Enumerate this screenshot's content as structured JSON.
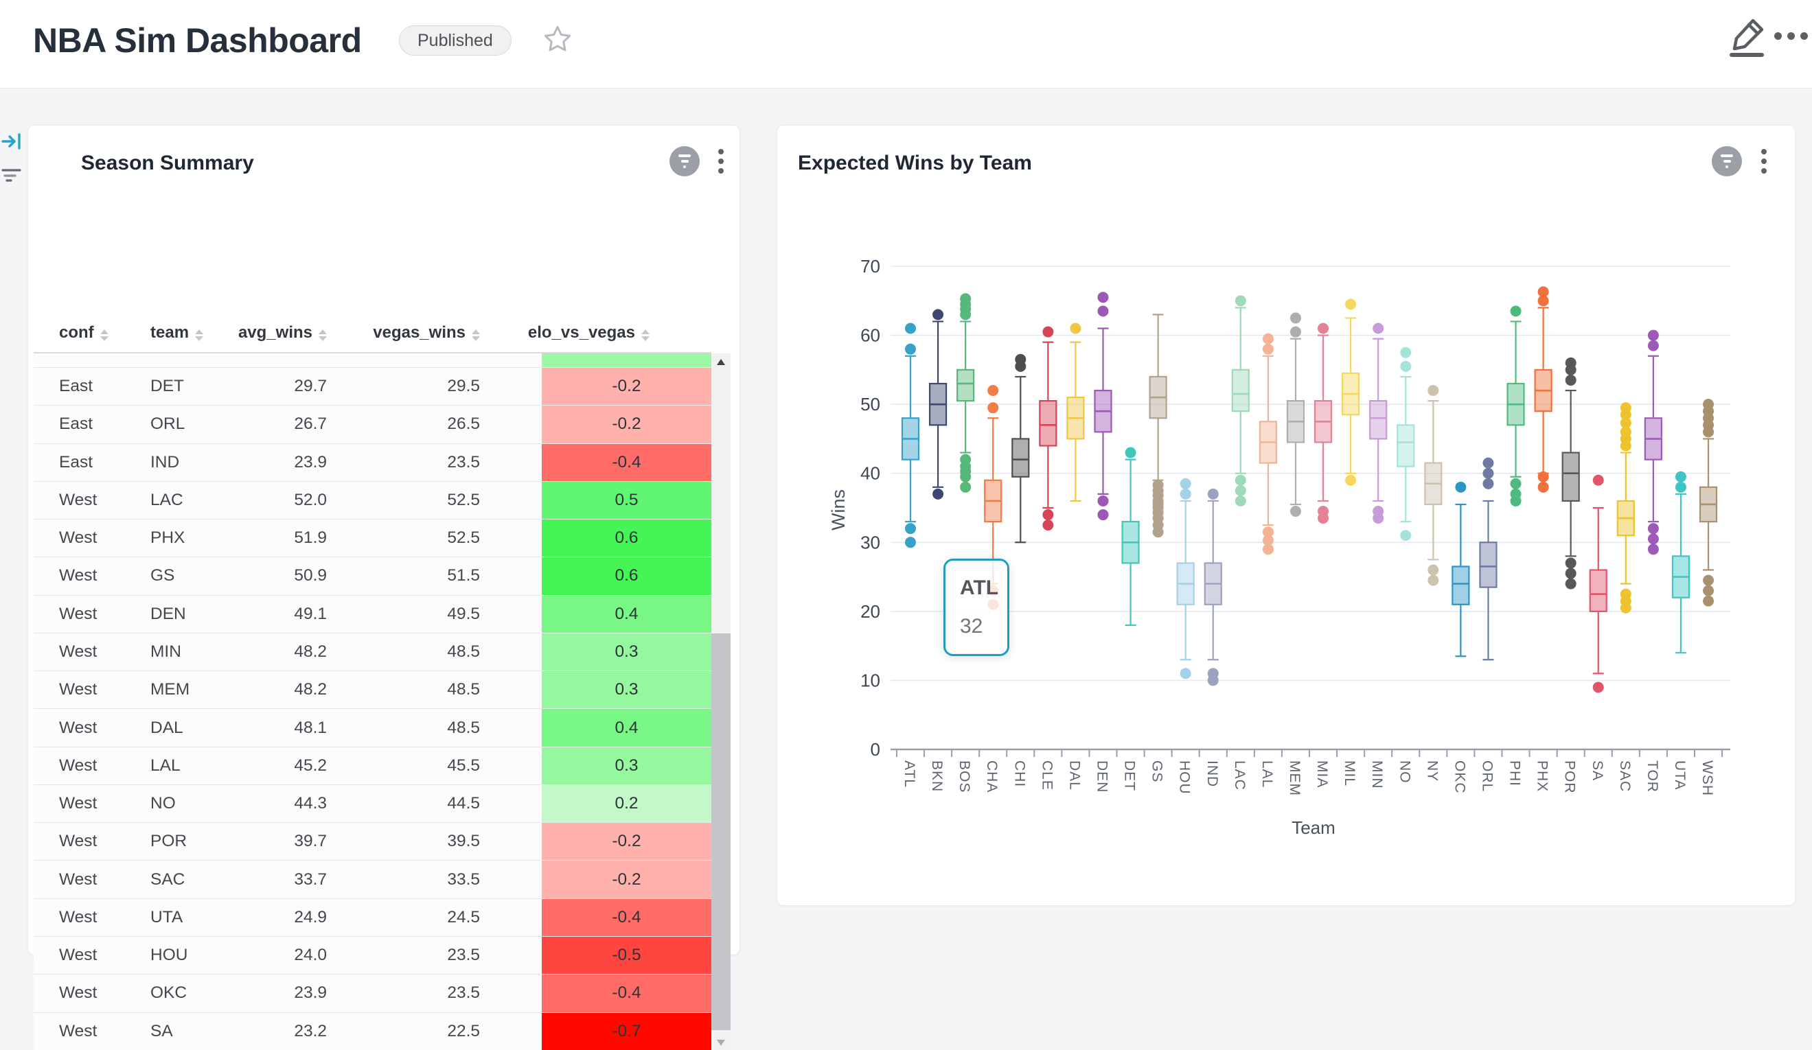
{
  "header": {
    "title": "NBA Sim Dashboard",
    "badge": "Published",
    "star_icon": "star-outline",
    "edit_icon": "pencil",
    "more_icon": "ellipsis"
  },
  "rail": {
    "expand_icon": "arrow-to-bar",
    "filter_icon": "filter-lines"
  },
  "season_summary": {
    "title": "Season Summary",
    "columns": [
      "conf",
      "team",
      "avg_wins",
      "vegas_wins",
      "elo_vs_vegas"
    ],
    "partial_row_color": "#9df8a6",
    "rows": [
      {
        "conf": "East",
        "team": "DET",
        "avg_wins": "29.7",
        "vegas_wins": "29.5",
        "elo_vs_vegas": "-0.2",
        "elo_color": "#ffb1ae"
      },
      {
        "conf": "East",
        "team": "ORL",
        "avg_wins": "26.7",
        "vegas_wins": "26.5",
        "elo_vs_vegas": "-0.2",
        "elo_color": "#ffb1ae"
      },
      {
        "conf": "East",
        "team": "IND",
        "avg_wins": "23.9",
        "vegas_wins": "23.5",
        "elo_vs_vegas": "-0.4",
        "elo_color": "#ff6b67"
      },
      {
        "conf": "West",
        "team": "LAC",
        "avg_wins": "52.0",
        "vegas_wins": "52.5",
        "elo_vs_vegas": "0.5",
        "elo_color": "#61f671"
      },
      {
        "conf": "West",
        "team": "PHX",
        "avg_wins": "51.9",
        "vegas_wins": "52.5",
        "elo_vs_vegas": "0.6",
        "elo_color": "#45f556"
      },
      {
        "conf": "West",
        "team": "GS",
        "avg_wins": "50.9",
        "vegas_wins": "51.5",
        "elo_vs_vegas": "0.6",
        "elo_color": "#45f556"
      },
      {
        "conf": "West",
        "team": "DEN",
        "avg_wins": "49.1",
        "vegas_wins": "49.5",
        "elo_vs_vegas": "0.4",
        "elo_color": "#78f786"
      },
      {
        "conf": "West",
        "team": "MIN",
        "avg_wins": "48.2",
        "vegas_wins": "48.5",
        "elo_vs_vegas": "0.3",
        "elo_color": "#95f89f"
      },
      {
        "conf": "West",
        "team": "MEM",
        "avg_wins": "48.2",
        "vegas_wins": "48.5",
        "elo_vs_vegas": "0.3",
        "elo_color": "#95f89f"
      },
      {
        "conf": "West",
        "team": "DAL",
        "avg_wins": "48.1",
        "vegas_wins": "48.5",
        "elo_vs_vegas": "0.4",
        "elo_color": "#78f786"
      },
      {
        "conf": "West",
        "team": "LAL",
        "avg_wins": "45.2",
        "vegas_wins": "45.5",
        "elo_vs_vegas": "0.3",
        "elo_color": "#95f89f"
      },
      {
        "conf": "West",
        "team": "NO",
        "avg_wins": "44.3",
        "vegas_wins": "44.5",
        "elo_vs_vegas": "0.2",
        "elo_color": "#c3f9c8"
      },
      {
        "conf": "West",
        "team": "POR",
        "avg_wins": "39.7",
        "vegas_wins": "39.5",
        "elo_vs_vegas": "-0.2",
        "elo_color": "#ffb1ae"
      },
      {
        "conf": "West",
        "team": "SAC",
        "avg_wins": "33.7",
        "vegas_wins": "33.5",
        "elo_vs_vegas": "-0.2",
        "elo_color": "#ffb1ae"
      },
      {
        "conf": "West",
        "team": "UTA",
        "avg_wins": "24.9",
        "vegas_wins": "24.5",
        "elo_vs_vegas": "-0.4",
        "elo_color": "#ff6b67"
      },
      {
        "conf": "West",
        "team": "HOU",
        "avg_wins": "24.0",
        "vegas_wins": "23.5",
        "elo_vs_vegas": "-0.5",
        "elo_color": "#ff4540"
      },
      {
        "conf": "West",
        "team": "OKC",
        "avg_wins": "23.9",
        "vegas_wins": "23.5",
        "elo_vs_vegas": "-0.4",
        "elo_color": "#ff6b67"
      },
      {
        "conf": "West",
        "team": "SA",
        "avg_wins": "23.2",
        "vegas_wins": "22.5",
        "elo_vs_vegas": "-0.7",
        "elo_color": "#ff0800"
      }
    ]
  },
  "chart_panel": {
    "title": "Expected Wins by Team"
  },
  "chart_data": {
    "type": "box",
    "title": "Expected Wins by Team",
    "xlabel": "Team",
    "ylabel": "Wins",
    "ylim": [
      0,
      70
    ],
    "yticks": [
      0,
      10,
      20,
      30,
      40,
      50,
      60,
      70
    ],
    "grid": true,
    "series": [
      {
        "team": "ATL",
        "color": "#36a2c9",
        "whislo": 33,
        "q1": 42,
        "med": 45,
        "q3": 48,
        "whishi": 57,
        "fliers_hi": [
          58,
          61
        ],
        "fliers_lo": [
          30,
          32
        ]
      },
      {
        "team": "BKN",
        "color": "#3e4773",
        "whislo": 38,
        "q1": 47,
        "med": 50,
        "q3": 53,
        "whishi": 62,
        "fliers_hi": [
          63
        ],
        "fliers_lo": [
          37
        ]
      },
      {
        "team": "BOS",
        "color": "#57b87b",
        "whislo": 43,
        "q1": 50.5,
        "med": 53,
        "q3": 55,
        "whishi": 62,
        "fliers_hi": [
          63,
          63.8,
          64.5,
          65.3
        ],
        "fliers_lo": [
          38,
          39.5,
          40.3,
          41,
          42
        ]
      },
      {
        "team": "CHA",
        "color": "#ef7d45",
        "whislo": 24,
        "q1": 33,
        "med": 36,
        "q3": 39,
        "whishi": 48,
        "fliers_hi": [
          49.5,
          52
        ],
        "fliers_lo": [
          21,
          23
        ]
      },
      {
        "team": "CHI",
        "color": "#4e4e4e",
        "whislo": 30,
        "q1": 39.5,
        "med": 42,
        "q3": 45,
        "whishi": 54,
        "fliers_hi": [
          55.5,
          56.5
        ],
        "fliers_lo": []
      },
      {
        "team": "CLE",
        "color": "#d64458",
        "whislo": 35,
        "q1": 44,
        "med": 47,
        "q3": 50.5,
        "whishi": 59,
        "fliers_hi": [
          60.5
        ],
        "fliers_lo": [
          32.5,
          34
        ]
      },
      {
        "team": "DAL",
        "color": "#f1c644",
        "whislo": 36,
        "q1": 45,
        "med": 48,
        "q3": 51,
        "whishi": 59,
        "fliers_hi": [
          61
        ],
        "fliers_lo": []
      },
      {
        "team": "DEN",
        "color": "#9f57b6",
        "whislo": 37,
        "q1": 46,
        "med": 49,
        "q3": 52,
        "whishi": 61,
        "fliers_hi": [
          63.5,
          65.5
        ],
        "fliers_lo": [
          34,
          36
        ]
      },
      {
        "team": "DET",
        "color": "#3ec8bd",
        "whislo": 18,
        "q1": 27,
        "med": 30,
        "q3": 33,
        "whishi": 42,
        "fliers_hi": [
          43
        ],
        "fliers_lo": []
      },
      {
        "team": "GS",
        "color": "#b2a28d",
        "whislo": 39,
        "q1": 48,
        "med": 51,
        "q3": 54,
        "whishi": 63,
        "fliers_hi": [],
        "fliers_lo": [
          31.5,
          32.5,
          33.5,
          34.3,
          35,
          35.5,
          36,
          36.8,
          37.5,
          38.3
        ]
      },
      {
        "team": "HOU",
        "color": "#a2d1e8",
        "whislo": 13,
        "q1": 21,
        "med": 24,
        "q3": 27,
        "whishi": 36,
        "fliers_hi": [
          37,
          38.5
        ],
        "fliers_lo": [
          11
        ]
      },
      {
        "team": "IND",
        "color": "#9da2c0",
        "whislo": 13,
        "q1": 21,
        "med": 24,
        "q3": 27,
        "whishi": 36,
        "fliers_hi": [
          37
        ],
        "fliers_lo": [
          10,
          11
        ]
      },
      {
        "team": "LAC",
        "color": "#9ed9b8",
        "whislo": 40,
        "q1": 49,
        "med": 51.5,
        "q3": 55,
        "whishi": 64,
        "fliers_hi": [
          65
        ],
        "fliers_lo": [
          36,
          37.5,
          39
        ]
      },
      {
        "team": "LAL",
        "color": "#f4b394",
        "whislo": 32.5,
        "q1": 41.5,
        "med": 44.5,
        "q3": 47.5,
        "whishi": 57,
        "fliers_hi": [
          58,
          59.5
        ],
        "fliers_lo": [
          29,
          30.3,
          31.5
        ]
      },
      {
        "team": "MEM",
        "color": "#aeaeae",
        "whislo": 35.5,
        "q1": 44.5,
        "med": 47.5,
        "q3": 50.5,
        "whishi": 59.5,
        "fliers_hi": [
          60.5,
          62.5
        ],
        "fliers_lo": [
          34.5
        ]
      },
      {
        "team": "MIA",
        "color": "#e28294",
        "whislo": 36,
        "q1": 44.5,
        "med": 47.5,
        "q3": 50.5,
        "whishi": 60,
        "fliers_hi": [
          61
        ],
        "fliers_lo": [
          33.5,
          34.5
        ]
      },
      {
        "team": "MIL",
        "color": "#f6d75e",
        "whislo": 40,
        "q1": 48.5,
        "med": 51.5,
        "q3": 54.5,
        "whishi": 62.5,
        "fliers_hi": [
          64.5
        ],
        "fliers_lo": [
          39
        ]
      },
      {
        "team": "MIN",
        "color": "#c69bd8",
        "whislo": 36,
        "q1": 45,
        "med": 48,
        "q3": 50.5,
        "whishi": 59.5,
        "fliers_hi": [
          61
        ],
        "fliers_lo": [
          33.5,
          34.5
        ]
      },
      {
        "team": "NO",
        "color": "#a5e3da",
        "whislo": 33,
        "q1": 41,
        "med": 44.5,
        "q3": 47,
        "whishi": 54,
        "fliers_hi": [
          55.5,
          57.5
        ],
        "fliers_lo": [
          31
        ]
      },
      {
        "team": "NY",
        "color": "#cdc2ad",
        "whislo": 27.5,
        "q1": 35.5,
        "med": 38.5,
        "q3": 41.5,
        "whishi": 50.5,
        "fliers_hi": [
          52
        ],
        "fliers_lo": [
          24.5,
          26
        ]
      },
      {
        "team": "OKC",
        "color": "#2b96c5",
        "whislo": 13.5,
        "q1": 21,
        "med": 24,
        "q3": 26.5,
        "whishi": 35.5,
        "fliers_hi": [
          38
        ],
        "fliers_lo": []
      },
      {
        "team": "ORL",
        "color": "#6f7aa3",
        "whislo": 13,
        "q1": 23.5,
        "med": 26.5,
        "q3": 30,
        "whishi": 36,
        "fliers_hi": [
          38.5,
          40,
          41.5
        ],
        "fliers_lo": []
      },
      {
        "team": "PHI",
        "color": "#4fba7e",
        "whislo": 39.5,
        "q1": 47,
        "med": 50,
        "q3": 53,
        "whishi": 62,
        "fliers_hi": [
          63.5
        ],
        "fliers_lo": [
          36,
          37,
          38.5
        ]
      },
      {
        "team": "PHX",
        "color": "#ef713b",
        "whislo": 40,
        "q1": 49,
        "med": 52,
        "q3": 55,
        "whishi": 64,
        "fliers_hi": [
          65,
          66.3
        ],
        "fliers_lo": [
          38,
          39.5
        ]
      },
      {
        "team": "POR",
        "color": "#585858",
        "whislo": 28,
        "q1": 36,
        "med": 40,
        "q3": 43,
        "whishi": 52,
        "fliers_hi": [
          53.5,
          55,
          56
        ],
        "fliers_lo": [
          24,
          25.5,
          27
        ]
      },
      {
        "team": "SA",
        "color": "#e05569",
        "whislo": 11,
        "q1": 20,
        "med": 22.5,
        "q3": 26,
        "whishi": 35,
        "fliers_hi": [
          39
        ],
        "fliers_lo": [
          9
        ]
      },
      {
        "team": "SAC",
        "color": "#edc32f",
        "whislo": 24,
        "q1": 31,
        "med": 33.5,
        "q3": 36,
        "whishi": 43,
        "fliers_hi": [
          44,
          45,
          46,
          47.3,
          48.5,
          49.5
        ],
        "fliers_lo": [
          20.5,
          21.5,
          22.5
        ]
      },
      {
        "team": "TOR",
        "color": "#9d5ab7",
        "whislo": 33,
        "q1": 42,
        "med": 45,
        "q3": 48,
        "whishi": 57,
        "fliers_hi": [
          58.5,
          60
        ],
        "fliers_lo": [
          29,
          30.5,
          32
        ]
      },
      {
        "team": "UTA",
        "color": "#3fc5c5",
        "whislo": 14,
        "q1": 22,
        "med": 25,
        "q3": 28,
        "whishi": 37,
        "fliers_hi": [
          38,
          39.5
        ],
        "fliers_lo": []
      },
      {
        "team": "WSH",
        "color": "#a9916e",
        "whislo": 26,
        "q1": 33,
        "med": 35.5,
        "q3": 38,
        "whishi": 45,
        "fliers_hi": [
          46,
          47,
          48,
          49,
          50
        ],
        "fliers_lo": [
          21.5,
          23,
          24.5
        ]
      }
    ]
  },
  "tooltip": {
    "team": "ATL",
    "value": "32"
  }
}
